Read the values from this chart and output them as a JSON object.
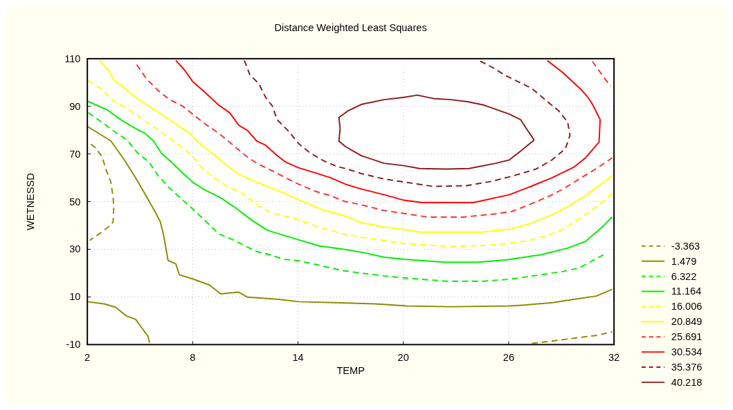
{
  "chart_data": {
    "type": "line",
    "title": "Distance Weighted Least Squares",
    "xlabel": "TEMP",
    "ylabel": "WETNESSD",
    "xlim": [
      2,
      32
    ],
    "ylim": [
      -10,
      110
    ],
    "xticks": [
      2,
      8,
      14,
      20,
      26,
      32
    ],
    "yticks": [
      -10,
      10,
      30,
      50,
      70,
      90,
      110
    ],
    "grid": true,
    "legend": "right",
    "series": [
      {
        "name": "-3.363",
        "color": "#8c8c00",
        "line_style": "dashed",
        "x": [
          2.2,
          2.45,
          2.83,
          3.09,
          3.34,
          3.47,
          3.5,
          3.47,
          3.4,
          2.96,
          2.64,
          2.13,
          null,
          27.32,
          28.34,
          29.1,
          30.38,
          31.15,
          31.9
        ],
        "values": [
          74.1,
          72.7,
          69,
          62.9,
          58.2,
          51.6,
          46.9,
          41.7,
          40.6,
          38,
          36.3,
          33.7,
          null,
          -9.5,
          -8.6,
          -7.9,
          -6.7,
          -6,
          -4.6
        ]
      },
      {
        "name": "1.479",
        "color": "#8c8c00",
        "line_style": "solid",
        "x": [
          2,
          2.7,
          3.34,
          4.1,
          4.75,
          5.26,
          5.77,
          6.15,
          6.34,
          6.6,
          7.04,
          7.24,
          8.07,
          8.96,
          9.6,
          10.62,
          11.13,
          12.9,
          14.07,
          16.1,
          18.4,
          20.2,
          22.7,
          26.04,
          26.9,
          28.5,
          29.7,
          31,
          31.9,
          null,
          2,
          2.96,
          3.6,
          4.23,
          4.75,
          5.26,
          5.45,
          5.54
        ],
        "values": [
          81.6,
          78.4,
          75.5,
          67.6,
          60,
          53.5,
          46.9,
          41.7,
          36.1,
          25.3,
          23.9,
          19.3,
          17.4,
          15,
          11.3,
          12,
          9.9,
          9,
          8,
          7.6,
          7.1,
          6.2,
          5.9,
          6.2,
          6.6,
          7.6,
          9,
          10.4,
          13.2,
          null,
          8,
          7.1,
          5.7,
          2,
          0.6,
          -4.6,
          -6.4,
          -9.3
        ]
      },
      {
        "name": "6.322",
        "color": "#00ee00",
        "line_style": "dashed",
        "x": [
          2.06,
          2.7,
          3.47,
          4.24,
          4.87,
          5.51,
          6.02,
          6.66,
          7.3,
          8.0,
          8.83,
          9.47,
          10.24,
          11,
          11.64,
          12.4,
          13.17,
          13.94,
          14.84,
          16.5,
          17.6,
          18.9,
          20.17,
          22.46,
          24.5,
          26.04,
          27.83,
          29.1,
          30.0,
          31.4
        ],
        "values": [
          87.3,
          84,
          79.8,
          76,
          70.4,
          66.6,
          61,
          55.8,
          51.6,
          46.9,
          41.2,
          36.5,
          34.2,
          31.4,
          29.1,
          27.7,
          25.8,
          25.3,
          23.9,
          21.1,
          20,
          18.8,
          17.9,
          16.6,
          16.6,
          17.4,
          19.3,
          20.7,
          22.1,
          27.7
        ]
      },
      {
        "name": "11.164",
        "color": "#00ee00",
        "line_style": "solid",
        "x": [
          2,
          3.09,
          3.98,
          4.87,
          5.26,
          5.77,
          6.21,
          6.79,
          7.3,
          8.0,
          8.58,
          9.6,
          10.37,
          11.39,
          12.28,
          13.94,
          15.22,
          16.6,
          17.74,
          18.9,
          20.04,
          22.34,
          24.25,
          25.9,
          27.83,
          29.36,
          30.38,
          31.4,
          31.9
        ],
        "values": [
          92.2,
          88.7,
          84,
          80.2,
          78.8,
          75.5,
          70.4,
          66.6,
          62.9,
          58.2,
          55.4,
          51.6,
          47.8,
          42.1,
          37.9,
          34.2,
          31.4,
          30,
          28.6,
          26.7,
          25.8,
          24.6,
          24.6,
          25.6,
          27.7,
          30.5,
          33.3,
          39.8,
          43.6
        ]
      },
      {
        "name": "16.006",
        "color": "#ffff00",
        "line_style": "dashed",
        "x": [
          2.06,
          2.83,
          3.47,
          4.24,
          5,
          5.64,
          6.53,
          7.17,
          7.94,
          8.58,
          9.22,
          10.11,
          10.75,
          11.64,
          12.4,
          13.7,
          15.2,
          16.6,
          17.6,
          18.9,
          20.17,
          22.72,
          24.64,
          26.04,
          27.2,
          28.47,
          29.1,
          30.38,
          31.15,
          31.9
        ],
        "values": [
          100.9,
          97.1,
          92.4,
          89.2,
          85.4,
          82.1,
          77.4,
          74.1,
          69.4,
          63.8,
          60,
          55.8,
          53.9,
          48.8,
          45.5,
          43.1,
          39.3,
          36.5,
          35.1,
          33.7,
          32.3,
          31.2,
          31.6,
          32.5,
          33.7,
          36.5,
          38.4,
          44.5,
          48.7,
          53.4
        ]
      },
      {
        "name": "20.849",
        "color": "#ffff00",
        "line_style": "solid",
        "x": [
          2.7,
          3.21,
          3.53,
          3.98,
          4.49,
          5,
          5.51,
          6.28,
          7.04,
          7.81,
          8.45,
          9.09,
          9.85,
          10.62,
          11.64,
          12.92,
          14.07,
          15.47,
          16.75,
          17.6,
          18.9,
          20.04,
          20.93,
          24.5,
          26.04,
          27.2,
          28.47,
          29.1,
          30.38,
          31.9
        ],
        "values": [
          109.3,
          105.1,
          100.9,
          98.5,
          95.3,
          92.4,
          90.1,
          86.3,
          82.6,
          78.8,
          74.1,
          70.4,
          65.7,
          61.5,
          58.2,
          54.4,
          50.7,
          46.4,
          43.8,
          41.2,
          39.3,
          38.4,
          37.2,
          37.2,
          38.4,
          40.7,
          44.5,
          46.8,
          52.4,
          60.9
        ]
      },
      {
        "name": "25.691",
        "color": "#ff3030",
        "line_style": "dashed",
        "x": [
          4.81,
          5.38,
          6.02,
          6.66,
          7.43,
          8.07,
          8.71,
          9.47,
          10.24,
          11,
          11.64,
          12.54,
          13.3,
          14.07,
          14.96,
          15.86,
          16.6,
          17.6,
          18.9,
          20.17,
          21.44,
          23.4,
          25.27,
          26.2,
          27.45,
          28.34,
          29.1,
          30.13,
          31.15,
          31.9,
          null,
          30.77,
          31.28,
          31.8
        ],
        "values": [
          107.5,
          101.4,
          96.7,
          92.9,
          90.1,
          86.3,
          82.6,
          78.8,
          74.1,
          69.4,
          66.1,
          62.9,
          60,
          57.2,
          54.4,
          52.5,
          50.2,
          48.7,
          46.3,
          44.9,
          43.5,
          43.5,
          44.9,
          45.9,
          49.6,
          52.4,
          55.3,
          60,
          64.6,
          68.4,
          null,
          108.8,
          103.6,
          98.5
        ]
      },
      {
        "name": "30.534",
        "color": "#ff0000",
        "line_style": "solid",
        "x": [
          7.04,
          7.55,
          8.0,
          8.58,
          9.47,
          10.11,
          10.62,
          11.13,
          11.64,
          12.15,
          12.8,
          13.3,
          14.0,
          14.84,
          15.86,
          16.75,
          17.6,
          18.9,
          20.04,
          21.06,
          24,
          26.04,
          27.2,
          28.47,
          29.74,
          30.38,
          31.15,
          31.21,
          30.77,
          30.51,
          30.13,
          29.1,
          28.2
        ],
        "values": [
          109.3,
          105.1,
          100.4,
          96.7,
          90.6,
          87.3,
          82.1,
          79.8,
          75.5,
          73.7,
          69.4,
          66.6,
          64.3,
          62.4,
          60,
          57.2,
          55.3,
          52.9,
          50.6,
          49.6,
          49.6,
          52.9,
          56.2,
          60,
          64.6,
          68.4,
          75,
          84.4,
          90.9,
          93.8,
          97,
          104.1,
          109.2
        ]
      },
      {
        "name": "35.376",
        "color": "#8b1a1a",
        "line_style": "dashed",
        "x": [
          10.94,
          11.26,
          11.77,
          12.15,
          12.54,
          12.8,
          13.43,
          14.07,
          14.7,
          15.47,
          16.24,
          16.75,
          17.6,
          18.9,
          20.17,
          21.7,
          23.6,
          25.02,
          26.3,
          27.57,
          28.47,
          29.23,
          29.49,
          29.36,
          28.85,
          28.08,
          27.32,
          26.55,
          25.78,
          25.15,
          24.38
        ],
        "values": [
          109.3,
          103.2,
          99.5,
          93.8,
          90.1,
          84.5,
          79.8,
          74.1,
          70.4,
          67.1,
          64.7,
          63.8,
          61.8,
          59.5,
          58.1,
          56.4,
          56.7,
          58.5,
          60.9,
          63.7,
          67.5,
          72.2,
          77.8,
          83.4,
          88.1,
          92.8,
          97.5,
          100.3,
          103.1,
          106,
          109
        ]
      },
      {
        "name": "40.218",
        "color": "#8b1a1a",
        "line_style": "solid",
        "x": [
          16.4,
          16.33,
          16.85,
          17.6,
          18.9,
          20.04,
          20.8,
          21.7,
          22.7,
          23.7,
          24.6,
          26.04,
          26.68,
          26.93,
          27.45,
          null,
          27.45,
          26.68,
          26.04,
          25.27,
          23.74,
          22.46,
          20.93,
          20.04,
          18.9,
          17.6,
          16.7,
          16.33,
          16.4
        ],
        "values": [
          80.6,
          85.3,
          88.1,
          90.8,
          92.8,
          93.8,
          94.7,
          93.3,
          92.8,
          91.9,
          90.5,
          86.7,
          84.4,
          81.5,
          75.9,
          null,
          75.9,
          71.2,
          67.5,
          66.1,
          63.9,
          63.7,
          63.9,
          65.1,
          66.1,
          69.3,
          73.1,
          75.4,
          80.6
        ]
      }
    ]
  }
}
